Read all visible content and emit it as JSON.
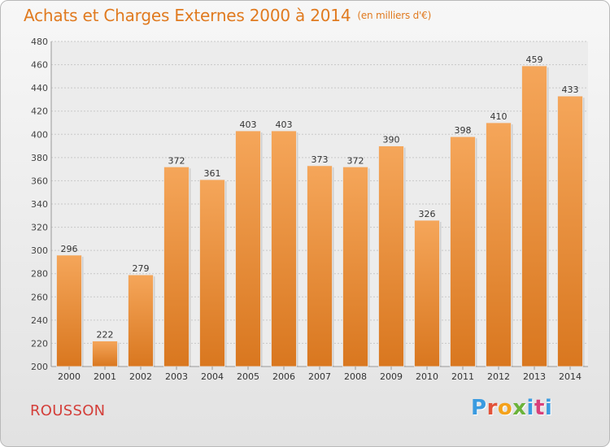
{
  "title": "Achats et Charges Externes 2000 à 2014",
  "subtitle": "(en milliers d'€)",
  "commune": "ROUSSON",
  "brand": "Proxiti",
  "colors": {
    "bar_top": "#f5a65a",
    "bar_bottom": "#d9771f",
    "title": "#e07a1f",
    "commune": "#d43f3a",
    "grid": "#c8c8c8"
  },
  "chart_data": {
    "type": "bar",
    "categories": [
      "2000",
      "2001",
      "2002",
      "2003",
      "2004",
      "2005",
      "2006",
      "2007",
      "2008",
      "2009",
      "2010",
      "2011",
      "2012",
      "2013",
      "2014"
    ],
    "values": [
      296,
      222,
      279,
      372,
      361,
      403,
      403,
      373,
      372,
      390,
      326,
      398,
      410,
      459,
      433
    ],
    "ylim": [
      200,
      480
    ],
    "yticks": [
      200,
      220,
      240,
      260,
      280,
      300,
      320,
      340,
      360,
      380,
      400,
      420,
      440,
      460,
      480
    ],
    "grid": true,
    "data_labels": true
  }
}
